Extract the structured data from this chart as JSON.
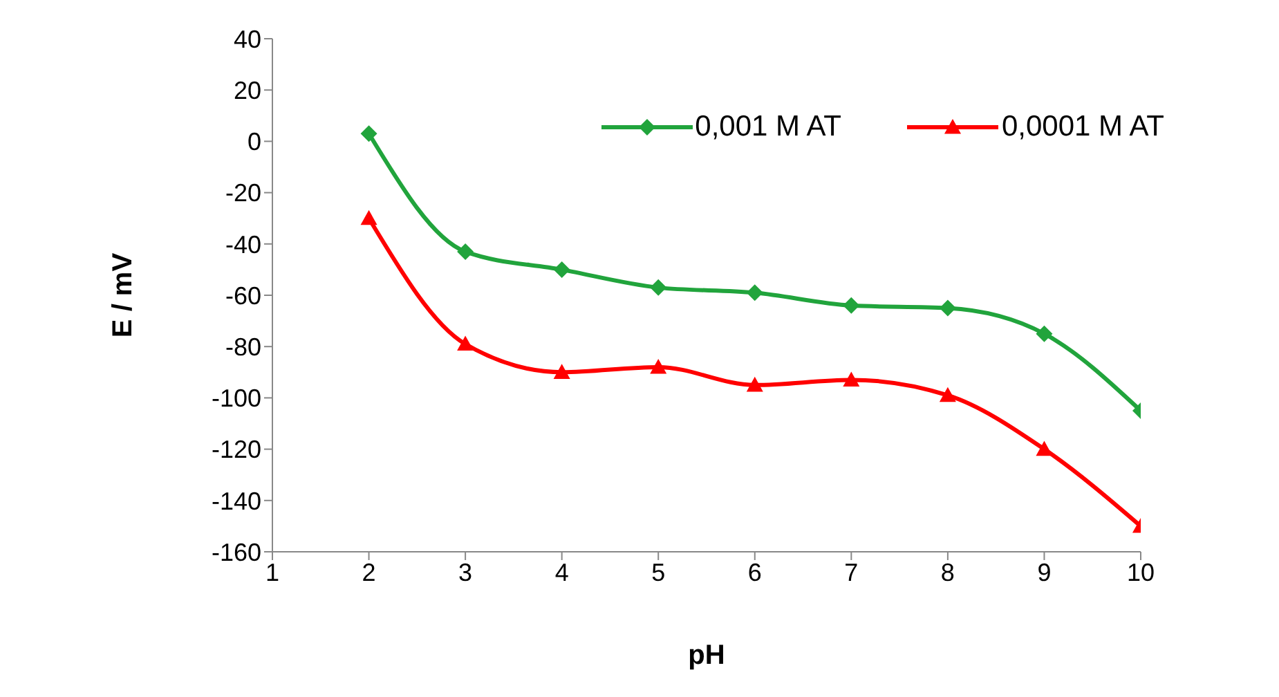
{
  "chart_data": {
    "type": "line",
    "xlabel": "pH",
    "ylabel": "E / mV",
    "x": [
      2,
      3,
      4,
      5,
      6,
      7,
      8,
      9,
      10
    ],
    "series": [
      {
        "name": "0,001 M AT",
        "color": "#21a43c",
        "marker": "diamond",
        "values": [
          3,
          -43,
          -50,
          -57,
          -59,
          -64,
          -65,
          -75,
          -105
        ]
      },
      {
        "name": "0,0001 M AT",
        "color": "#ff0000",
        "marker": "triangle",
        "values": [
          -30,
          -79,
          -90,
          -88,
          -95,
          -93,
          -99,
          -120,
          -150
        ]
      }
    ],
    "xlim": [
      1,
      10
    ],
    "xticks": [
      1,
      2,
      3,
      4,
      5,
      6,
      7,
      8,
      9,
      10
    ],
    "ylim": [
      -160,
      40
    ],
    "yticks": [
      -160,
      -140,
      -120,
      -100,
      -80,
      -60,
      -40,
      -20,
      0,
      20,
      40
    ],
    "legend": "top right"
  }
}
